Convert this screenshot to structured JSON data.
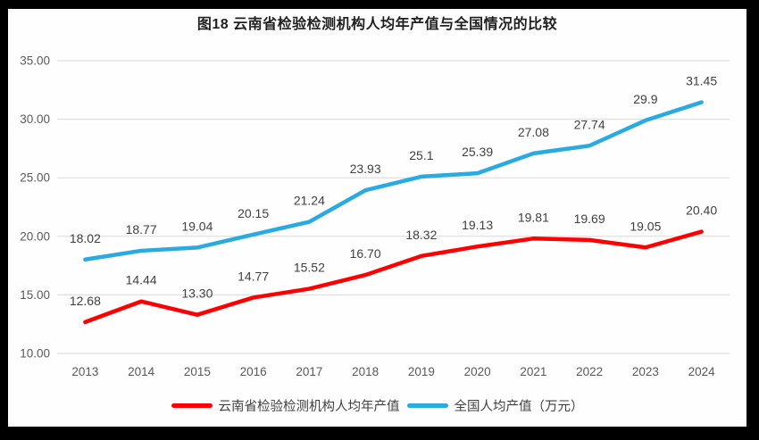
{
  "chart_data": {
    "type": "line",
    "title": "图18 云南省检验检测机构人均年产值与全国情况的比较",
    "categories": [
      "2013",
      "2014",
      "2015",
      "2016",
      "2017",
      "2018",
      "2019",
      "2020",
      "2021",
      "2022",
      "2023",
      "2024"
    ],
    "series": [
      {
        "name": "云南省检验检测机构人均年产值",
        "color": "#ff0000",
        "values": [
          12.68,
          14.44,
          13.3,
          14.77,
          15.52,
          16.7,
          18.32,
          19.13,
          19.81,
          19.69,
          19.05,
          20.4
        ],
        "labels": [
          "12.68",
          "14.44",
          "13.30",
          "14.77",
          "15.52",
          "16.70",
          "18.32",
          "19.13",
          "19.81",
          "19.69",
          "19.05",
          "20.40"
        ]
      },
      {
        "name": "全国人均产值（万元）",
        "color": "#29abe2",
        "values": [
          18.02,
          18.77,
          19.04,
          20.15,
          21.24,
          23.93,
          25.1,
          25.39,
          27.08,
          27.74,
          29.9,
          31.45
        ],
        "labels": [
          "18.02",
          "18.77",
          "19.04",
          "20.15",
          "21.24",
          "23.93",
          "25.1",
          "25.39",
          "27.08",
          "27.74",
          "29.9",
          "31.45"
        ]
      }
    ],
    "y_axis": {
      "min": 10,
      "max": 35,
      "step": 5,
      "tick_labels": [
        "10.00",
        "15.00",
        "20.00",
        "25.00",
        "30.00",
        "35.00"
      ]
    },
    "grid": true,
    "legend_position": "bottom",
    "colors": {
      "gridline": "#d9d9d9",
      "tick_text": "#595959",
      "data_label_text": "#404040",
      "frame": "#000000",
      "background": "#fefefe"
    }
  }
}
